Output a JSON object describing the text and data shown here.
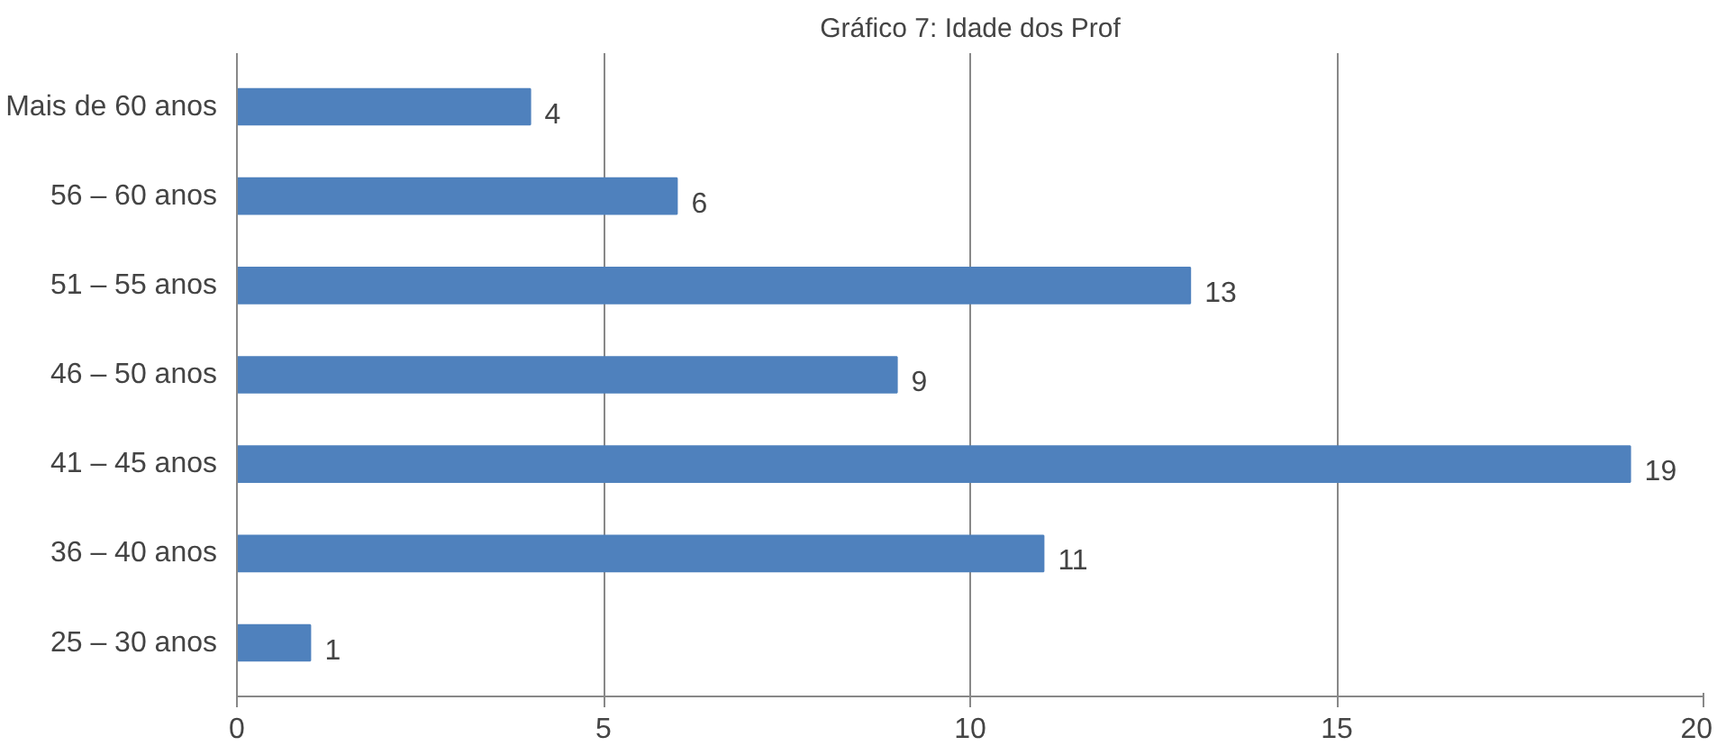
{
  "chart_data": {
    "type": "bar",
    "orientation": "horizontal",
    "title": "Gráfico 7: Idade dos Prof",
    "categories": [
      "Mais de 60 anos",
      "56 – 60 anos",
      "51 – 55 anos",
      "46 – 50 anos",
      "41 – 45 anos",
      "36 – 40 anos",
      "25 – 30 anos"
    ],
    "values": [
      4,
      6,
      13,
      9,
      19,
      11,
      1
    ],
    "color": "#4f81bd",
    "xlim": [
      0,
      20
    ],
    "xticks": [
      0,
      5,
      10,
      15,
      20
    ],
    "grid": "x",
    "data_labels": true
  }
}
